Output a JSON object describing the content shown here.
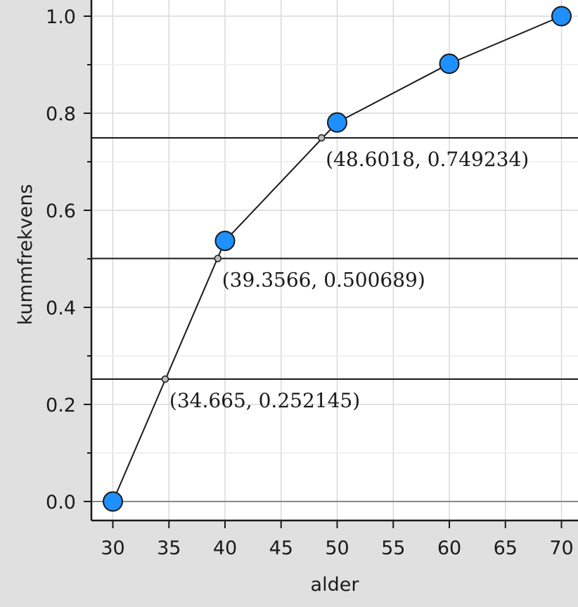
{
  "chart_data": {
    "type": "line",
    "xlabel": "alder",
    "ylabel": "kummfrekvens",
    "xlim": [
      28,
      71
    ],
    "ylim": [
      -0.04,
      1.03
    ],
    "xticks": [
      30,
      35,
      40,
      45,
      50,
      55,
      60,
      65,
      70
    ],
    "xtick_labels": [
      "30",
      "35",
      "40",
      "45",
      "50",
      "55",
      "60",
      "65",
      "70"
    ],
    "yticks": [
      0.0,
      0.2,
      0.4,
      0.6,
      0.8,
      1.0
    ],
    "ytick_labels": [
      "0.0",
      "0.2",
      "0.4",
      "0.6",
      "0.8",
      "1.0"
    ],
    "grid": true,
    "series": [
      {
        "x": [
          30,
          40,
          50,
          60,
          70
        ],
        "y": [
          0.0,
          0.537,
          0.781,
          0.902,
          1.0
        ],
        "color": "#1e90ff"
      }
    ],
    "hlines": [
      0.252145,
      0.500689,
      0.749234
    ],
    "intersections": [
      {
        "x": 34.665,
        "y": 0.252145,
        "label": "(34.665, 0.252145)"
      },
      {
        "x": 39.3566,
        "y": 0.500689,
        "label": "(39.3566, 0.500689)"
      },
      {
        "x": 48.6018,
        "y": 0.749234,
        "label": "(48.6018, 0.749234)"
      }
    ]
  }
}
